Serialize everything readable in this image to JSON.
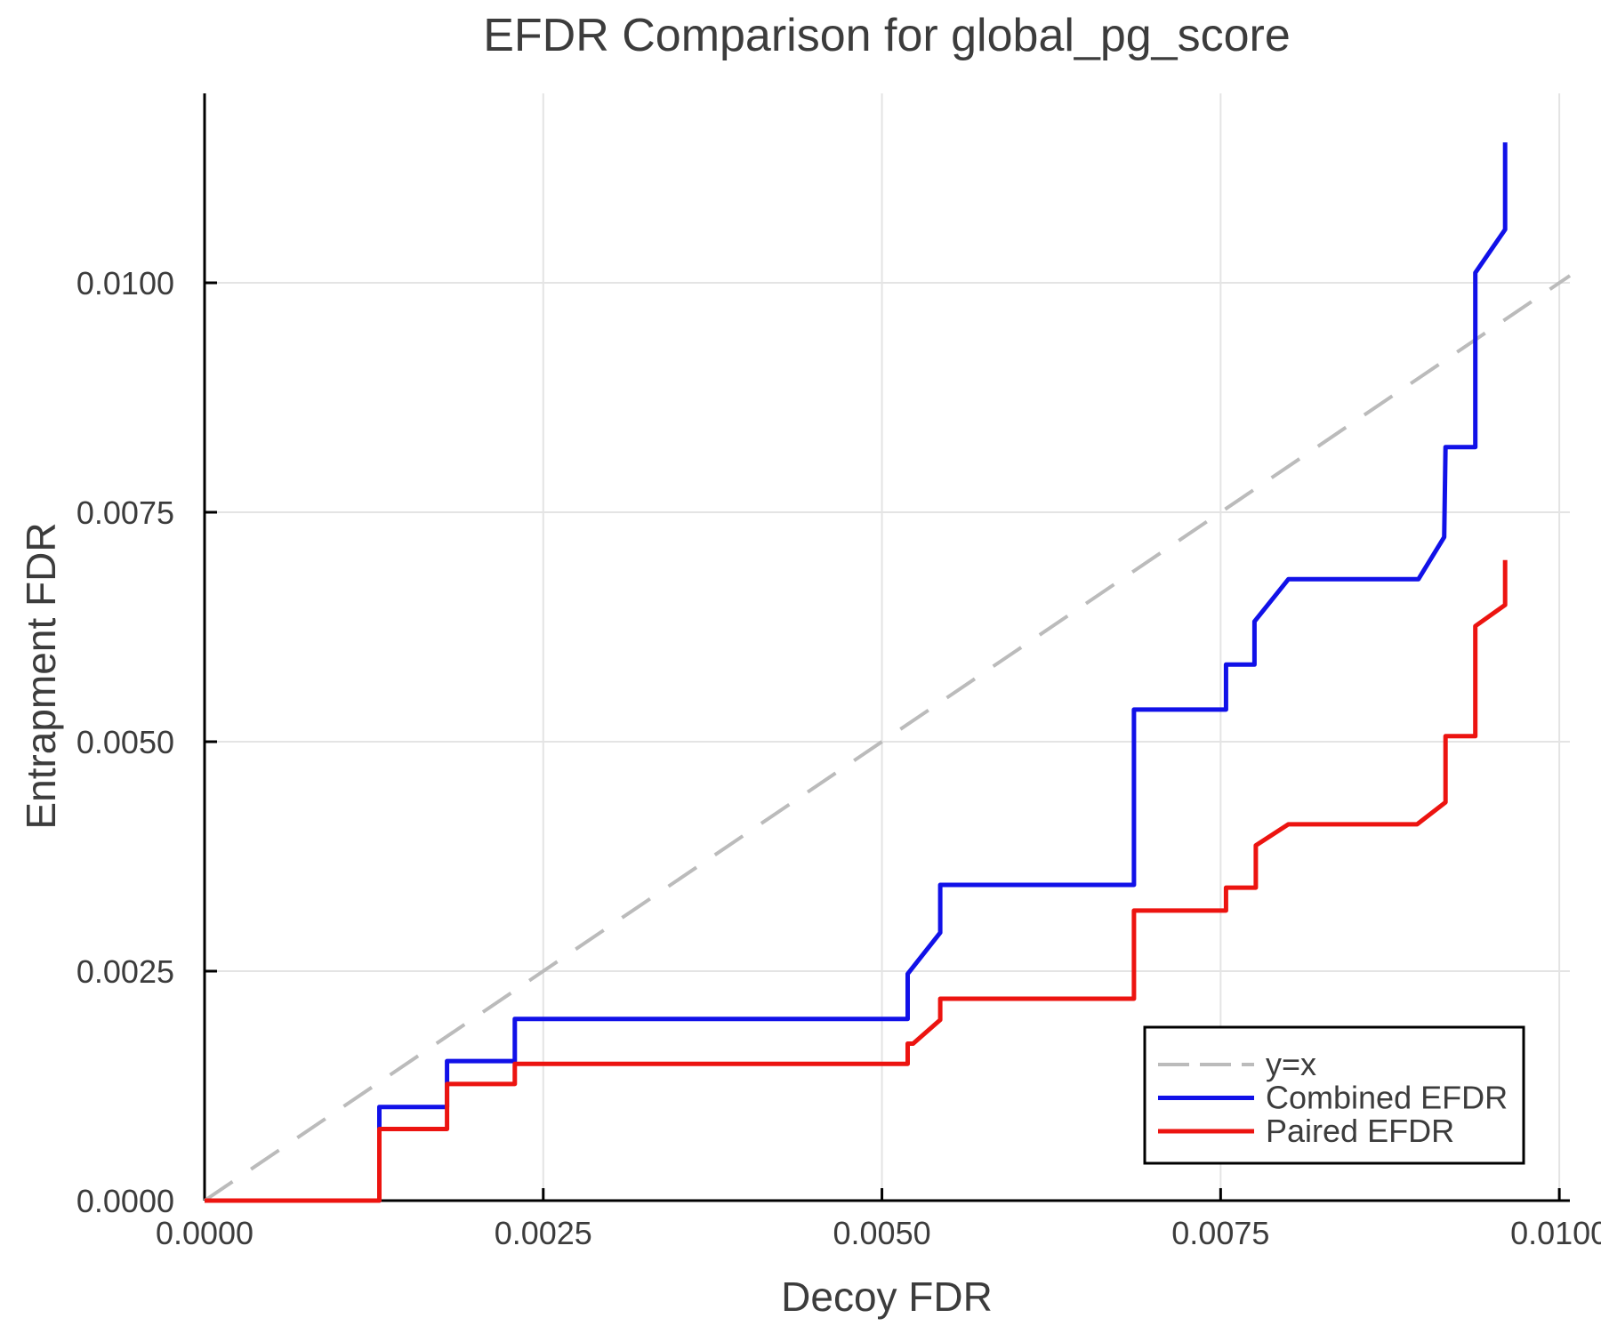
{
  "figure": {
    "title": "EFDR Comparison for global_pg_score",
    "xlabel": "Decoy FDR",
    "ylabel": "Entrapment FDR"
  },
  "chart_data": {
    "type": "line",
    "title": "EFDR Comparison for global_pg_score",
    "xlabel": "Decoy FDR",
    "ylabel": "Entrapment FDR",
    "xlim": [
      0,
      0.010078
    ],
    "ylim": [
      0,
      0.012064
    ],
    "grid": true,
    "legend_position": "bottom-right",
    "x_ticks": {
      "values": [
        0,
        0.0025,
        0.005,
        0.0075,
        0.01
      ],
      "labels": [
        "0.0000",
        "0.0025",
        "0.0050",
        "0.0075",
        "0.0100"
      ]
    },
    "y_ticks": {
      "values": [
        0,
        0.0025,
        0.005,
        0.0075,
        0.01
      ],
      "labels": [
        "0.0000",
        "0.0025",
        "0.0050",
        "0.0075",
        "0.0100"
      ]
    },
    "series": [
      {
        "name": "y=x",
        "color": "#bbbbbb",
        "dash": true,
        "width": 4,
        "points": [
          [
            0,
            0
          ],
          [
            0.010078,
            0.010078
          ]
        ]
      },
      {
        "name": "Combined EFDR",
        "color": "#1111e8",
        "dash": false,
        "width": 5,
        "points": [
          [
            0,
            0
          ],
          [
            0.00129,
            0
          ],
          [
            0.00129,
            0.00102
          ],
          [
            0.00179,
            0.00102
          ],
          [
            0.00179,
            0.00152
          ],
          [
            0.00229,
            0.00152
          ],
          [
            0.00229,
            0.00198
          ],
          [
            0.00519,
            0.00198
          ],
          [
            0.00519,
            0.00247
          ],
          [
            0.00543,
            0.00292
          ],
          [
            0.00543,
            0.00344
          ],
          [
            0.00686,
            0.00344
          ],
          [
            0.00686,
            0.00535
          ],
          [
            0.00754,
            0.00535
          ],
          [
            0.00754,
            0.00584
          ],
          [
            0.00775,
            0.00584
          ],
          [
            0.00775,
            0.00631
          ],
          [
            0.008,
            0.00677
          ],
          [
            0.00896,
            0.00677
          ],
          [
            0.00915,
            0.00723
          ],
          [
            0.00916,
            0.00821
          ],
          [
            0.00938,
            0.00821
          ],
          [
            0.00938,
            0.01011
          ],
          [
            0.0096,
            0.01058
          ],
          [
            0.0096,
            0.01153
          ]
        ]
      },
      {
        "name": "Paired EFDR",
        "color": "#ec1410",
        "dash": false,
        "width": 5,
        "points": [
          [
            0,
            0
          ],
          [
            0.00129,
            0
          ],
          [
            0.00129,
            0.00078
          ],
          [
            0.00179,
            0.00078
          ],
          [
            0.00179,
            0.00127
          ],
          [
            0.00229,
            0.00127
          ],
          [
            0.00229,
            0.00149
          ],
          [
            0.00519,
            0.00149
          ],
          [
            0.00519,
            0.00171
          ],
          [
            0.00523,
            0.00171
          ],
          [
            0.00543,
            0.00197
          ],
          [
            0.00543,
            0.0022
          ],
          [
            0.00686,
            0.0022
          ],
          [
            0.00686,
            0.00316
          ],
          [
            0.00754,
            0.00316
          ],
          [
            0.00754,
            0.00341
          ],
          [
            0.00776,
            0.00341
          ],
          [
            0.00776,
            0.00387
          ],
          [
            0.008,
            0.0041
          ],
          [
            0.00895,
            0.0041
          ],
          [
            0.00916,
            0.00434
          ],
          [
            0.00916,
            0.00506
          ],
          [
            0.00938,
            0.00506
          ],
          [
            0.00938,
            0.00626
          ],
          [
            0.0096,
            0.00649
          ],
          [
            0.0096,
            0.00698
          ]
        ]
      }
    ]
  }
}
